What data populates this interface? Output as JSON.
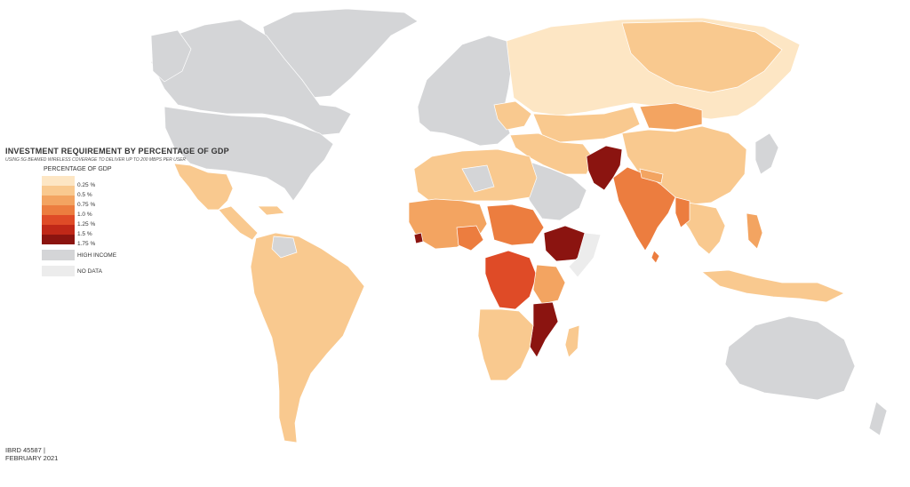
{
  "legend": {
    "title": "INVESTMENT REQUIREMENT BY PERCENTAGE OF GDP",
    "subtitle": "USING 5G BEAMED WIRELESS COVERAGE TO DELIVER UP TO 200 MBPS PER USER",
    "heading": "PERCENTAGE OF GDP",
    "bins": [
      {
        "label": "0.25 %",
        "color": "#fde6c4"
      },
      {
        "label": "0.5 %",
        "color": "#f9c98f"
      },
      {
        "label": "0.75 %",
        "color": "#f3a461"
      },
      {
        "label": "1.0 %",
        "color": "#ec7d3f"
      },
      {
        "label": "1.25 %",
        "color": "#df4b27"
      },
      {
        "label": "1.5 %",
        "color": "#c02818"
      },
      {
        "label": "1.75 %",
        "color": "#8b1410"
      }
    ],
    "high_income": {
      "label": "HIGH INCOME",
      "color": "#d4d5d7"
    },
    "no_data": {
      "label": "NO DATA",
      "color": "#ececec"
    }
  },
  "credit": {
    "map_id": "IBRD 45587 |",
    "date": "FEBRUARY 2021"
  },
  "regions": [
    {
      "name": "Canada",
      "bin": "high_income"
    },
    {
      "name": "United States",
      "bin": "high_income"
    },
    {
      "name": "Greenland",
      "bin": "high_income"
    },
    {
      "name": "Mexico",
      "bin": "0.5 %"
    },
    {
      "name": "Central America",
      "bin": "0.5 %"
    },
    {
      "name": "South America",
      "bin": "0.5 %"
    },
    {
      "name": "Europe",
      "bin": "high_income"
    },
    {
      "name": "Russia",
      "bin": "0.5 %"
    },
    {
      "name": "Central Asia",
      "bin": "0.5 %"
    },
    {
      "name": "China",
      "bin": "0.5 %"
    },
    {
      "name": "Mongolia",
      "bin": "0.75 %"
    },
    {
      "name": "Pakistan",
      "bin": "1.75 %"
    },
    {
      "name": "India",
      "bin": "1.0 %"
    },
    {
      "name": "Southeast Asia",
      "bin": "0.5 %"
    },
    {
      "name": "Japan",
      "bin": "high_income"
    },
    {
      "name": "Australia",
      "bin": "high_income"
    },
    {
      "name": "North Africa",
      "bin": "0.5 %"
    },
    {
      "name": "Arabian Peninsula",
      "bin": "high_income"
    },
    {
      "name": "West Africa",
      "bin": "0.75 %"
    },
    {
      "name": "Ethiopia",
      "bin": "1.75 %"
    },
    {
      "name": "DR Congo",
      "bin": "1.25 %"
    },
    {
      "name": "Mozambique",
      "bin": "1.75 %"
    },
    {
      "name": "Southern Africa",
      "bin": "0.5 %"
    }
  ]
}
